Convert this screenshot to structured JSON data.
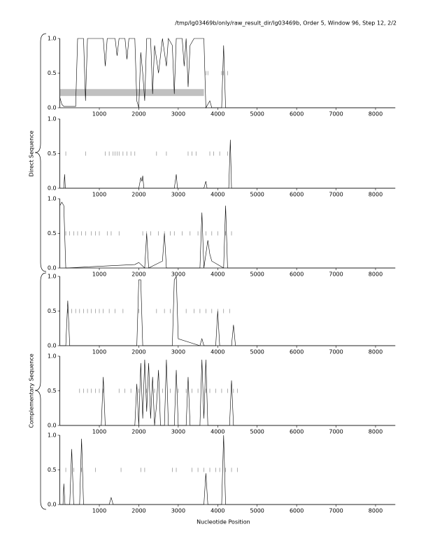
{
  "chart_data": [
    {
      "type": "line",
      "title": "/tmp/lg03469b/only/raw_result_dir/lg03469b, Order 5, Window 96, Step 12, 2/2",
      "x": [
        0,
        50,
        100,
        400,
        450,
        600,
        650,
        700,
        1100,
        1150,
        1200,
        1400,
        1450,
        1500,
        1650,
        1700,
        1750,
        1900,
        1950,
        2000,
        2050,
        2100,
        2150,
        2200,
        2300,
        2350,
        2400,
        2500,
        2600,
        2700,
        2750,
        2850,
        2900,
        2950,
        3100,
        3150,
        3200,
        3250,
        3300,
        3400,
        3650,
        3700,
        3800,
        3850,
        4100,
        4150,
        4200,
        8500
      ],
      "series": [
        {
          "color": "#000000",
          "values": [
            0.15,
            0.05,
            0.02,
            0.02,
            1.0,
            1.0,
            0.1,
            1.0,
            1.0,
            0.6,
            1.0,
            1.0,
            0.75,
            1.0,
            1.0,
            0.7,
            1.0,
            1.0,
            0.1,
            0.0,
            0.8,
            0.5,
            0.1,
            1.0,
            1.0,
            0.2,
            0.9,
            0.5,
            1.0,
            0.6,
            1.0,
            0.9,
            0.2,
            1.0,
            1.0,
            0.6,
            1.0,
            0.3,
            0.9,
            1.0,
            1.0,
            0.0,
            0.1,
            0.0,
            0.0,
            0.9,
            0.0,
            0.0
          ]
        }
      ],
      "markers": {
        "x": [
          3700,
          3750,
          4100,
          4150,
          4250
        ],
        "level": 0.5,
        "color": "#777777"
      },
      "band": {
        "x": [
          0,
          3650
        ],
        "y": [
          0.17,
          0.27
        ],
        "color": "#c0c0c0"
      },
      "xlim": [
        0,
        8500
      ],
      "ylim": [
        0,
        1
      ],
      "xticks": [
        1000,
        2000,
        3000,
        4000,
        5000,
        6000,
        7000,
        8000
      ],
      "yticks": [
        {
          "value": 0,
          "label": "0.0"
        },
        {
          "value": 0.5,
          "label": "0.5"
        },
        {
          "value": 1,
          "label": "1.0"
        }
      ]
    },
    {
      "type": "line",
      "ylabel": "Direct Sequence",
      "x": [
        0,
        100,
        120,
        140,
        2000,
        2050,
        2080,
        2100,
        2130,
        2900,
        2950,
        2980,
        3650,
        3700,
        3730,
        4280,
        4320,
        4350,
        8500
      ],
      "series": [
        {
          "color": "#000000",
          "values": [
            0.0,
            0.0,
            0.2,
            0.0,
            0.0,
            0.15,
            0.1,
            0.18,
            0.0,
            0.0,
            0.2,
            0.0,
            0.0,
            0.1,
            0.0,
            0.0,
            0.7,
            0.0,
            0.0
          ]
        }
      ],
      "markers": {
        "x": [
          150,
          650,
          1150,
          1250,
          1350,
          1400,
          1450,
          1500,
          1600,
          1700,
          1800,
          1900,
          2450,
          2700,
          3250,
          3350,
          3450,
          3800,
          3900,
          4050,
          4250
        ],
        "level": 0.5,
        "color": "#777777"
      },
      "xlim": [
        0,
        8500
      ],
      "ylim": [
        0,
        1
      ],
      "xticks": [
        1000,
        2000,
        3000,
        4000,
        5000,
        6000,
        7000,
        8000
      ],
      "yticks": [
        {
          "value": 0,
          "label": "0.0"
        },
        {
          "value": 0.5,
          "label": "0.5"
        },
        {
          "value": 1,
          "label": "1.0"
        }
      ]
    },
    {
      "type": "line",
      "x": [
        0,
        50,
        100,
        150,
        1900,
        2000,
        2150,
        2200,
        2250,
        2600,
        2650,
        2700,
        3550,
        3600,
        3650,
        3750,
        3800,
        3850,
        4150,
        4200,
        4250,
        8500
      ],
      "series": [
        {
          "color": "#000000",
          "values": [
            0.9,
            0.95,
            0.9,
            0.0,
            0.05,
            0.08,
            0.0,
            0.5,
            0.0,
            0.1,
            0.5,
            0.0,
            0.0,
            0.8,
            0.0,
            0.4,
            0.2,
            0.1,
            0.0,
            0.9,
            0.0,
            0.0
          ]
        }
      ],
      "markers": {
        "x": [
          150,
          250,
          350,
          450,
          550,
          650,
          800,
          900,
          1000,
          1200,
          1300,
          1500,
          2100,
          2200,
          2300,
          2500,
          2650,
          2800,
          2900,
          3100,
          3300,
          3500,
          3700,
          3850,
          4000,
          4200,
          4350
        ],
        "level": 0.5,
        "color": "#777777"
      },
      "xlim": [
        0,
        8500
      ],
      "ylim": [
        0,
        1
      ],
      "xticks": [
        1000,
        2000,
        3000,
        4000,
        5000,
        6000,
        7000,
        8000
      ],
      "yticks": [
        {
          "value": 0,
          "label": "0.0"
        },
        {
          "value": 0.5,
          "label": "0.5"
        },
        {
          "value": 1,
          "label": "1.0"
        }
      ]
    },
    {
      "type": "line",
      "x": [
        0,
        150,
        200,
        250,
        1950,
        2000,
        2050,
        2100,
        2850,
        2900,
        2950,
        3000,
        3550,
        3600,
        3650,
        3950,
        4000,
        4050,
        4350,
        4400,
        4450,
        8500
      ],
      "series": [
        {
          "color": "#000000",
          "values": [
            0.0,
            0.0,
            0.65,
            0.0,
            0.0,
            0.95,
            0.95,
            0.0,
            0.0,
            0.95,
            1.0,
            0.1,
            0.0,
            0.1,
            0.0,
            0.0,
            0.5,
            0.0,
            0.0,
            0.3,
            0.0,
            0.0
          ]
        }
      ],
      "markers": {
        "x": [
          200,
          300,
          400,
          500,
          600,
          700,
          800,
          900,
          1000,
          1100,
          1250,
          1400,
          1600,
          2000,
          2450,
          2650,
          2800,
          3200,
          3400,
          3550,
          3700,
          3850,
          4000,
          4150,
          4300
        ],
        "level": 0.5,
        "color": "#777777"
      },
      "xlim": [
        0,
        8500
      ],
      "ylim": [
        0,
        1
      ],
      "xticks": [
        1000,
        2000,
        3000,
        4000,
        5000,
        6000,
        7000,
        8000
      ],
      "yticks": [
        {
          "value": 0,
          "label": "0.0"
        },
        {
          "value": 0.5,
          "label": "0.5"
        },
        {
          "value": 1,
          "label": "1.0"
        }
      ]
    },
    {
      "type": "line",
      "ylabel": "Complementary Sequence",
      "x": [
        0,
        1050,
        1100,
        1150,
        1900,
        1950,
        2000,
        2050,
        2100,
        2150,
        2200,
        2250,
        2300,
        2350,
        2400,
        2450,
        2500,
        2550,
        2650,
        2700,
        2750,
        2900,
        2950,
        3000,
        3200,
        3250,
        3300,
        3550,
        3600,
        3650,
        3700,
        3750,
        4300,
        4350,
        4400,
        8500
      ],
      "series": [
        {
          "color": "#000000",
          "values": [
            0.0,
            0.0,
            0.7,
            0.0,
            0.0,
            0.6,
            0.0,
            0.9,
            0.1,
            0.95,
            0.2,
            0.9,
            0.1,
            0.7,
            0.0,
            0.3,
            0.8,
            0.0,
            0.0,
            0.95,
            0.0,
            0.0,
            0.8,
            0.0,
            0.0,
            0.7,
            0.0,
            0.0,
            0.95,
            0.1,
            0.95,
            0.0,
            0.0,
            0.65,
            0.0,
            0.0
          ]
        }
      ],
      "markers": {
        "x": [
          500,
          600,
          700,
          800,
          900,
          1000,
          1100,
          1500,
          1650,
          1800,
          2000,
          2200,
          2400,
          2600,
          2800,
          3000,
          3200,
          3350,
          3500,
          3700,
          3800,
          3950,
          4100,
          4250,
          4400,
          4500
        ],
        "level": 0.5,
        "color": "#777777"
      },
      "xlim": [
        0,
        8500
      ],
      "ylim": [
        0,
        1
      ],
      "xticks": [
        1000,
        2000,
        3000,
        4000,
        5000,
        6000,
        7000,
        8000
      ],
      "yticks": [
        {
          "value": 0,
          "label": "0.0"
        },
        {
          "value": 0.5,
          "label": "0.5"
        },
        {
          "value": 1,
          "label": "1.0"
        }
      ]
    },
    {
      "type": "line",
      "xlabel": "Nucleotide Position",
      "x": [
        0,
        80,
        100,
        130,
        250,
        300,
        350,
        500,
        550,
        600,
        1250,
        1300,
        1350,
        3650,
        3700,
        3750,
        4100,
        4150,
        4200,
        8500
      ],
      "series": [
        {
          "color": "#000000",
          "values": [
            0.0,
            0.0,
            0.3,
            0.0,
            0.0,
            0.8,
            0.0,
            0.0,
            0.95,
            0.0,
            0.0,
            0.1,
            0.0,
            0.0,
            0.45,
            0.0,
            0.0,
            1.0,
            0.0,
            0.0
          ]
        }
      ],
      "markers": {
        "x": [
          150,
          350,
          550,
          900,
          1550,
          2050,
          2150,
          2850,
          2950,
          3350,
          3500,
          3650,
          3800,
          3950,
          4050,
          4200,
          4350,
          4500
        ],
        "level": 0.5,
        "color": "#777777"
      },
      "xlim": [
        0,
        8500
      ],
      "ylim": [
        0,
        1
      ],
      "xticks": [
        1000,
        2000,
        3000,
        4000,
        5000,
        6000,
        7000,
        8000
      ],
      "yticks": [
        {
          "value": 0,
          "label": "0.0"
        },
        {
          "value": 0.5,
          "label": "0.5"
        },
        {
          "value": 1,
          "label": "1.0"
        }
      ]
    }
  ]
}
